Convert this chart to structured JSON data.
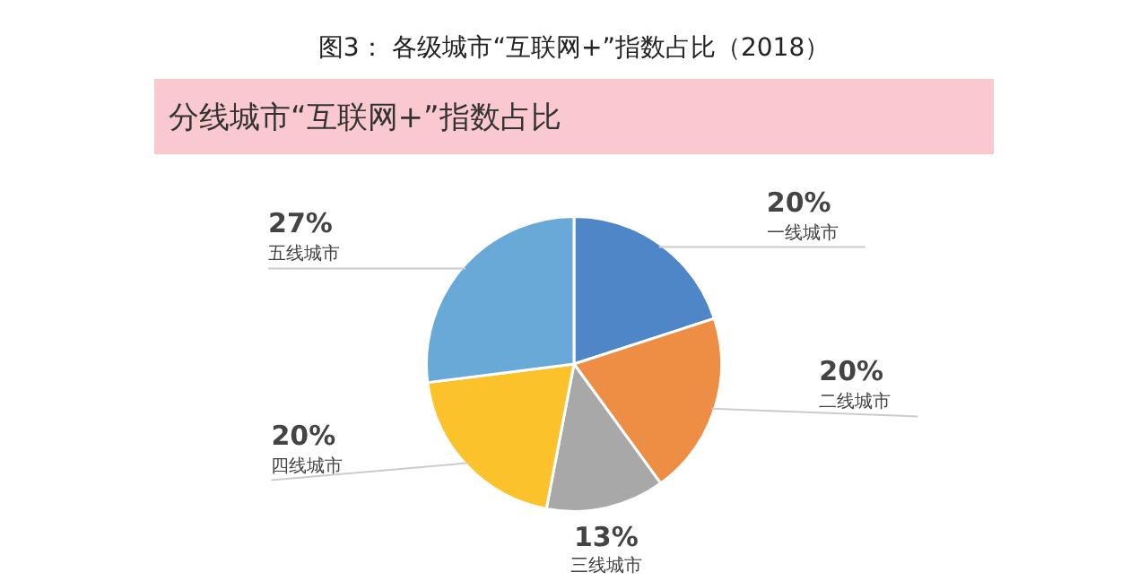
{
  "chart_data": {
    "type": "pie",
    "title": "图3：  各级城市“互联网+”指数占比（2018）",
    "subtitle": "分线城市“互联网+”指数占比",
    "categories": [
      "一线城市",
      "二线城市",
      "三线城市",
      "四线城市",
      "五线城市"
    ],
    "values": [
      20,
      20,
      13,
      20,
      27
    ],
    "value_labels": [
      "20%",
      "20%",
      "13%",
      "20%",
      "27%"
    ],
    "colors": [
      "#4e86c8",
      "#ee8e44",
      "#a8a8a8",
      "#fbc22c",
      "#68a9d8"
    ],
    "legend": false
  }
}
